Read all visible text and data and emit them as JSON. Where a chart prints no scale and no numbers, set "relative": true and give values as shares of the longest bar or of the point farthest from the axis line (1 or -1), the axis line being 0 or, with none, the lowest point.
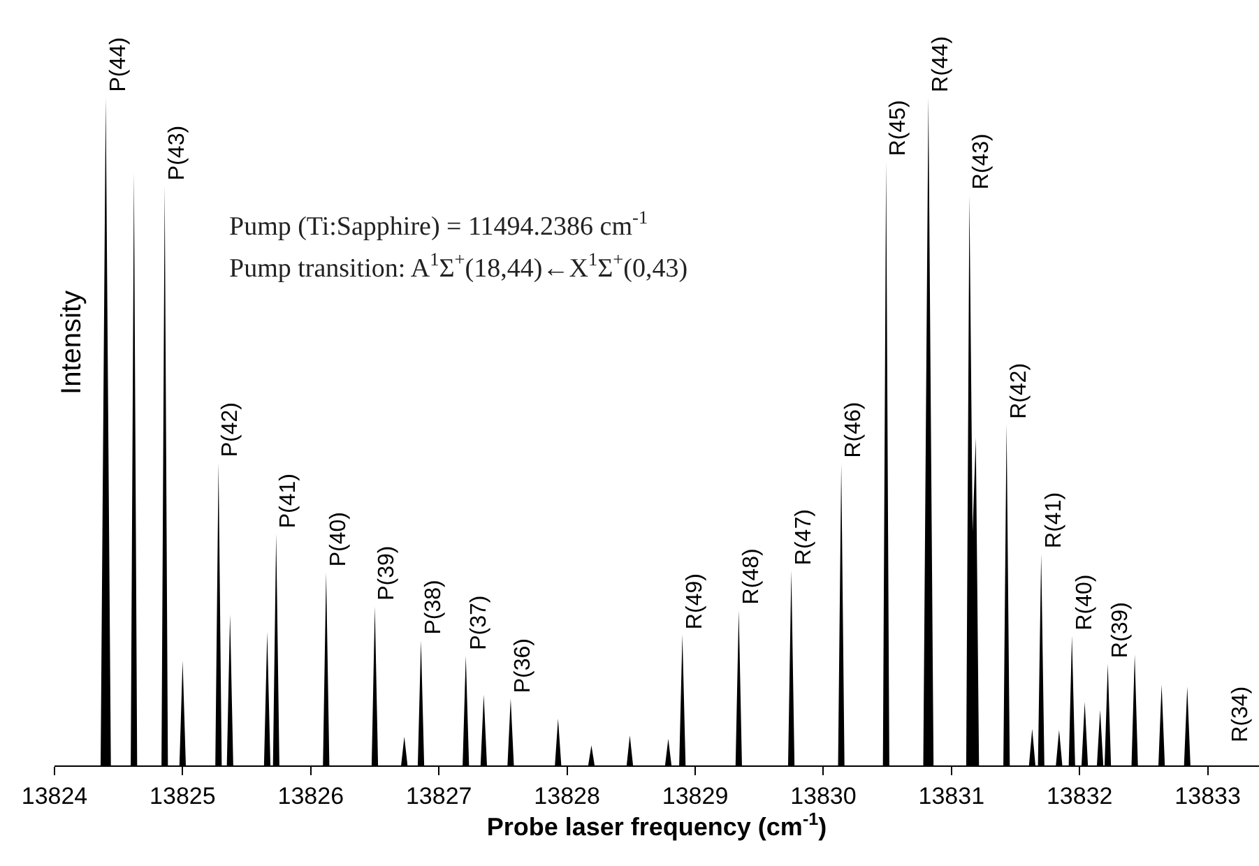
{
  "chart_data": {
    "type": "area",
    "relative": true,
    "xlabel": "Probe laser frequency (cm$^{-1}$)",
    "ylabel": "Intensity",
    "xlim": [
      13824,
      13833.4
    ],
    "xticks": [
      13824,
      13825,
      13826,
      13827,
      13828,
      13829,
      13830,
      13831,
      13832,
      13833
    ],
    "annotations": [
      "Pump (Ti:Sapphire) = 11494.2386 cm$^{-1}$",
      "Pump transition: A$^{1}$Σ$^{+}$(18,44)←X$^{1}$Σ$^{+}$(0,43)",
      {
        "text": "P(44)",
        "x": 13824.4,
        "y": 1.0
      },
      {
        "text": "P(43)",
        "x": 13824.86,
        "y": 0.868
      },
      {
        "text": "P(42)",
        "x": 13825.28,
        "y": 0.453
      },
      {
        "text": "P(41)",
        "x": 13825.73,
        "y": 0.347
      },
      {
        "text": "P(40)",
        "x": 13826.12,
        "y": 0.289
      },
      {
        "text": "P(39)",
        "x": 13826.5,
        "y": 0.238
      },
      {
        "text": "P(38)",
        "x": 13826.86,
        "y": 0.187
      },
      {
        "text": "P(37)",
        "x": 13827.21,
        "y": 0.164
      },
      {
        "text": "P(36)",
        "x": 13827.56,
        "y": 0.1
      },
      {
        "text": "R(49)",
        "x": 13828.9,
        "y": 0.196
      },
      {
        "text": "R(48)",
        "x": 13829.34,
        "y": 0.232
      },
      {
        "text": "R(47)",
        "x": 13829.75,
        "y": 0.292
      },
      {
        "text": "R(46)",
        "x": 13830.14,
        "y": 0.452
      },
      {
        "text": "R(45)",
        "x": 13830.49,
        "y": 0.904
      },
      {
        "text": "R(44)",
        "x": 13830.82,
        "y": 1.0
      },
      {
        "text": "R(43)",
        "x": 13831.14,
        "y": 0.853
      },
      {
        "text": "R(42)",
        "x": 13831.43,
        "y": 0.511
      },
      {
        "text": "R(41)",
        "x": 13831.7,
        "y": 0.317
      },
      {
        "text": "R(40)",
        "x": 13831.94,
        "y": 0.194
      },
      {
        "text": "R(39)",
        "x": 13832.22,
        "y": 0.152
      },
      "R(34)"
    ],
    "x": [
      13824.36,
      13824.4,
      13824.44,
      13824.595,
      13824.62,
      13824.645,
      13824.835,
      13824.86,
      13824.885,
      13824.975,
      13825.0,
      13825.025,
      13825.255,
      13825.28,
      13825.305,
      13825.345,
      13825.37,
      13825.395,
      13825.635,
      13825.66,
      13825.685,
      13825.705,
      13825.73,
      13825.755,
      13826.095,
      13826.12,
      13826.145,
      13826.475,
      13826.5,
      13826.525,
      13826.705,
      13826.73,
      13826.755,
      13826.835,
      13826.86,
      13826.885,
      13827.185,
      13827.21,
      13827.235,
      13827.325,
      13827.35,
      13827.375,
      13827.535,
      13827.56,
      13827.585,
      13827.905,
      13827.93,
      13827.955,
      13828.165,
      13828.19,
      13828.215,
      13828.465,
      13828.49,
      13828.515,
      13828.765,
      13828.79,
      13828.815,
      13828.875,
      13828.9,
      13828.925,
      13829.315,
      13829.34,
      13829.365,
      13829.725,
      13829.75,
      13829.775,
      13830.115,
      13830.14,
      13830.165,
      13830.465,
      13830.49,
      13830.515,
      13830.78,
      13830.82,
      13830.86,
      13831.115,
      13831.14,
      13831.165,
      13831.19,
      13831.215,
      13831.405,
      13831.43,
      13831.455,
      13831.605,
      13831.63,
      13831.655,
      13831.675,
      13831.7,
      13831.725,
      13831.815,
      13831.84,
      13831.865,
      13831.915,
      13831.94,
      13831.965,
      13832.015,
      13832.04,
      13832.065,
      13832.135,
      13832.16,
      13832.185,
      13832.195,
      13832.22,
      13832.245,
      13832.405,
      13832.43,
      13832.455,
      13832.615,
      13832.64,
      13832.665,
      13832.815,
      13832.84,
      13832.865
    ],
    "series": [
      {
        "color": "#000000",
        "values": [
          0,
          1.0,
          0,
          0,
          0.887,
          0,
          0,
          0.868,
          0,
          0,
          0.157,
          0,
          0,
          0.453,
          0,
          0,
          0.226,
          0,
          0,
          0.2,
          0,
          0,
          0.347,
          0,
          0,
          0.289,
          0,
          0,
          0.238,
          0,
          0,
          0.043,
          0,
          0,
          0.187,
          0,
          0,
          0.164,
          0,
          0,
          0.106,
          0,
          0,
          0.1,
          0,
          0,
          0.07,
          0,
          0,
          0.03,
          0,
          0,
          0.045,
          0,
          0,
          0.04,
          0,
          0,
          0.196,
          0,
          0,
          0.232,
          0,
          0,
          0.292,
          0,
          0,
          0.452,
          0,
          0,
          0.904,
          0,
          0,
          1.0,
          0,
          0,
          0.853,
          0.35,
          0.491,
          0,
          0,
          0.511,
          0,
          0,
          0.055,
          0,
          0,
          0.317,
          0,
          0,
          0.053,
          0,
          0,
          0.194,
          0,
          0,
          0.095,
          0,
          0,
          0.083,
          0,
          0,
          0.152,
          0,
          0,
          0.166,
          0,
          0,
          0.121,
          0,
          0,
          0.118,
          0
        ]
      }
    ]
  }
}
